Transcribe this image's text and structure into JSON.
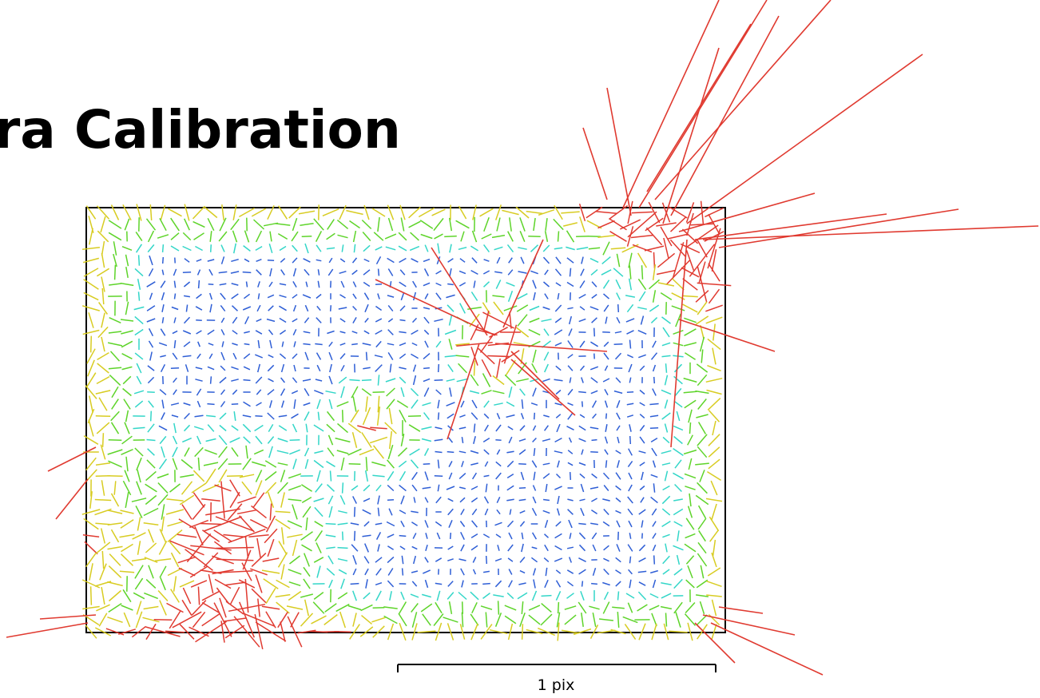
{
  "title": "era Calibration",
  "scale_bar": {
    "label": "1 pix",
    "length_pix": 1
  },
  "colors": {
    "frame": "#000000",
    "small_residual": "#2f5fd6",
    "low_residual": "#33d6c8",
    "mid_residual": "#5ed42a",
    "high_residual": "#d8cc22",
    "max_residual": "#e03a30"
  }
}
